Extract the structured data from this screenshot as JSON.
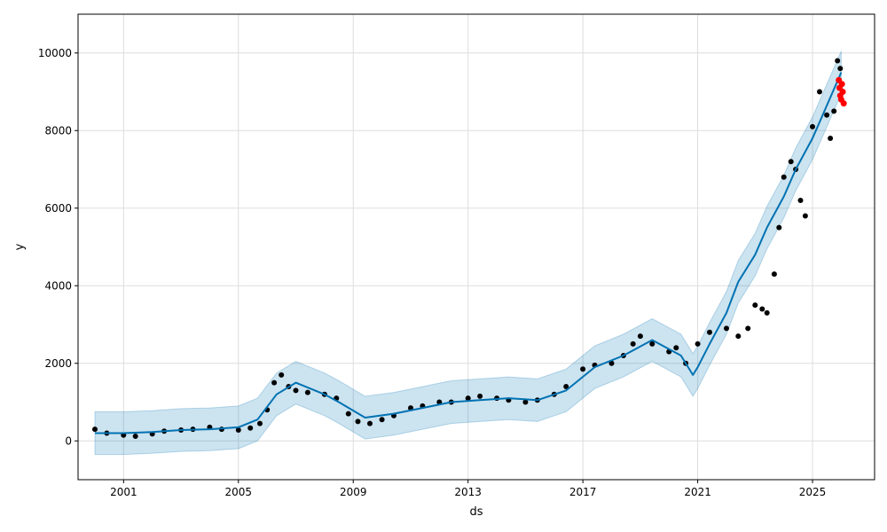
{
  "chart_data": {
    "type": "scatter",
    "title": "",
    "xlabel": "ds",
    "ylabel": "y",
    "x_type": "date",
    "xlim": [
      "1999-06-01",
      "2027-03-01"
    ],
    "ylim": [
      -1000,
      11000
    ],
    "x_ticks": [
      "2001",
      "2005",
      "2009",
      "2013",
      "2017",
      "2021",
      "2025"
    ],
    "y_ticks": [
      0,
      2000,
      4000,
      6000,
      8000,
      10000
    ],
    "grid": true,
    "legend": "none",
    "colors": {
      "observed": "#000000",
      "forecast_line": "#0072B2",
      "uncertainty_band": "#0072B2",
      "test_points": "#ff0000"
    },
    "series": [
      {
        "role": "observed",
        "kind": "points",
        "x": [
          "2000-01-01",
          "2000-06-01",
          "2001-01-01",
          "2001-06-01",
          "2002-01-01",
          "2002-06-01",
          "2003-01-01",
          "2003-06-01",
          "2004-01-01",
          "2004-06-01",
          "2005-01-01",
          "2005-06-01",
          "2005-10-01",
          "2006-01-01",
          "2006-04-01",
          "2006-07-01",
          "2006-10-01",
          "2007-01-01",
          "2007-06-01",
          "2008-01-01",
          "2008-06-01",
          "2008-11-01",
          "2009-03-01",
          "2009-08-01",
          "2010-01-01",
          "2010-06-01",
          "2011-01-01",
          "2011-06-01",
          "2012-01-01",
          "2012-06-01",
          "2013-01-01",
          "2013-06-01",
          "2014-01-01",
          "2014-06-01",
          "2015-01-01",
          "2015-06-01",
          "2016-01-01",
          "2016-06-01",
          "2017-01-01",
          "2017-06-01",
          "2018-01-01",
          "2018-06-01",
          "2018-10-01",
          "2019-01-01",
          "2019-06-01",
          "2020-01-01",
          "2020-04-01",
          "2020-08-01",
          "2021-01-01",
          "2021-06-01",
          "2022-01-01",
          "2022-06-01",
          "2022-10-01",
          "2023-01-01",
          "2023-04-01",
          "2023-06-01",
          "2023-09-01",
          "2023-11-01",
          "2024-01-01",
          "2024-04-01",
          "2024-06-01",
          "2024-08-01",
          "2024-10-01",
          "2025-01-01",
          "2025-04-01",
          "2025-07-01",
          "2025-08-15",
          "2025-10-01",
          "2025-11-15",
          "2025-12-20"
        ],
        "y": [
          300,
          200,
          150,
          120,
          180,
          250,
          280,
          300,
          350,
          300,
          280,
          330,
          450,
          800,
          1500,
          1700,
          1400,
          1300,
          1250,
          1200,
          1100,
          700,
          500,
          450,
          550,
          650,
          850,
          900,
          1000,
          1000,
          1100,
          1150,
          1100,
          1050,
          1000,
          1050,
          1200,
          1400,
          1850,
          1950,
          2000,
          2200,
          2500,
          2700,
          2500,
          2300,
          2400,
          2000,
          2500,
          2800,
          2900,
          2700,
          2900,
          3500,
          3400,
          3300,
          4300,
          5500,
          6800,
          7200,
          7000,
          6200,
          5800,
          8100,
          9000,
          8400,
          7800,
          8500,
          9800,
          9600
        ]
      },
      {
        "role": "test",
        "kind": "points",
        "x": [
          "2025-12-01",
          "2025-12-10",
          "2025-12-20",
          "2026-01-01",
          "2026-01-10",
          "2026-01-20",
          "2026-02-01"
        ],
        "y": [
          9300,
          9100,
          8900,
          8800,
          9200,
          9000,
          8700
        ]
      },
      {
        "role": "forecast",
        "kind": "line",
        "x": [
          "2000-01-01",
          "2001-01-01",
          "2002-01-01",
          "2003-01-01",
          "2004-01-01",
          "2005-01-01",
          "2005-09-01",
          "2006-05-01",
          "2007-01-01",
          "2008-01-01",
          "2008-07-01",
          "2009-06-01",
          "2010-06-01",
          "2011-06-01",
          "2012-06-01",
          "2013-06-01",
          "2014-06-01",
          "2015-06-01",
          "2016-06-01",
          "2017-06-01",
          "2018-06-01",
          "2019-06-01",
          "2020-06-01",
          "2020-11-01",
          "2021-01-01",
          "2021-06-01",
          "2022-01-01",
          "2022-06-01",
          "2023-01-01",
          "2023-06-01",
          "2024-01-01",
          "2024-06-01",
          "2025-01-01",
          "2025-06-01",
          "2026-01-01"
        ],
        "y": [
          200,
          200,
          230,
          280,
          300,
          350,
          550,
          1200,
          1500,
          1200,
          1000,
          600,
          700,
          850,
          1000,
          1050,
          1100,
          1050,
          1300,
          1900,
          2200,
          2600,
          2200,
          1700,
          1900,
          2500,
          3300,
          4100,
          4800,
          5500,
          6300,
          7000,
          7800,
          8500,
          9500
        ]
      },
      {
        "role": "uncertainty_upper",
        "kind": "band",
        "x": [
          "2000-01-01",
          "2001-01-01",
          "2002-01-01",
          "2003-01-01",
          "2004-01-01",
          "2005-01-01",
          "2005-09-01",
          "2006-05-01",
          "2007-01-01",
          "2008-01-01",
          "2008-07-01",
          "2009-06-01",
          "2010-06-01",
          "2011-06-01",
          "2012-06-01",
          "2013-06-01",
          "2014-06-01",
          "2015-06-01",
          "2016-06-01",
          "2017-06-01",
          "2018-06-01",
          "2019-06-01",
          "2020-06-01",
          "2020-11-01",
          "2021-01-01",
          "2021-06-01",
          "2022-01-01",
          "2022-06-01",
          "2023-01-01",
          "2023-06-01",
          "2024-01-01",
          "2024-06-01",
          "2025-01-01",
          "2025-06-01",
          "2026-01-01"
        ],
        "y": [
          750,
          750,
          780,
          830,
          850,
          900,
          1100,
          1750,
          2050,
          1750,
          1550,
          1150,
          1250,
          1400,
          1550,
          1600,
          1650,
          1600,
          1850,
          2450,
          2750,
          3150,
          2750,
          2250,
          2450,
          3050,
          3850,
          4650,
          5350,
          6050,
          6850,
          7550,
          8350,
          9050,
          10050
        ]
      },
      {
        "role": "uncertainty_lower",
        "kind": "band",
        "x": [
          "2000-01-01",
          "2001-01-01",
          "2002-01-01",
          "2003-01-01",
          "2004-01-01",
          "2005-01-01",
          "2005-09-01",
          "2006-05-01",
          "2007-01-01",
          "2008-01-01",
          "2008-07-01",
          "2009-06-01",
          "2010-06-01",
          "2011-06-01",
          "2012-06-01",
          "2013-06-01",
          "2014-06-01",
          "2015-06-01",
          "2016-06-01",
          "2017-06-01",
          "2018-06-01",
          "2019-06-01",
          "2020-06-01",
          "2020-11-01",
          "2021-01-01",
          "2021-06-01",
          "2022-01-01",
          "2022-06-01",
          "2023-01-01",
          "2023-06-01",
          "2024-01-01",
          "2024-06-01",
          "2025-01-01",
          "2025-06-01",
          "2026-01-01"
        ],
        "y": [
          -350,
          -350,
          -320,
          -270,
          -250,
          -200,
          0,
          650,
          950,
          650,
          450,
          50,
          150,
          300,
          450,
          500,
          550,
          500,
          750,
          1350,
          1650,
          2050,
          1650,
          1150,
          1350,
          1950,
          2750,
          3550,
          4250,
          4950,
          5750,
          6450,
          7250,
          7950,
          8950
        ]
      }
    ]
  }
}
